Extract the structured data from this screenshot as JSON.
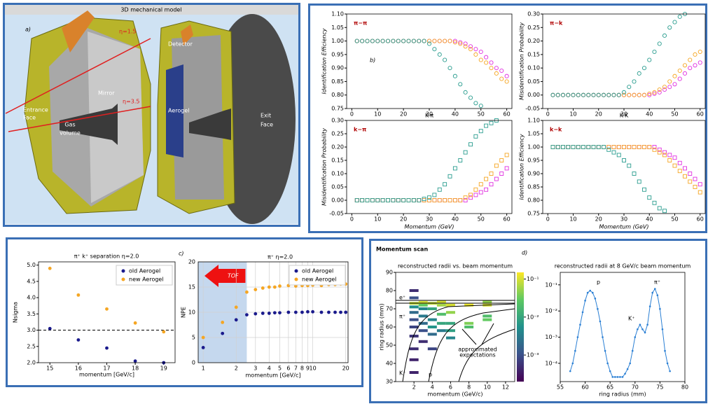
{
  "panel_a": {
    "title": "3D mechanical model",
    "label": "a)",
    "eta_lines": [
      "η=1.5",
      "η=3.5"
    ],
    "entrance_face": [
      "Entrance",
      "Face"
    ],
    "gas_volume": [
      "Gas",
      "volume"
    ],
    "mirror": "Mirror",
    "detector": "Detector",
    "aerogel": "Aerogel",
    "exit_face": [
      "Exit",
      "Face"
    ]
  },
  "panel_d": {
    "title": "Momentum scan",
    "label": "d)"
  },
  "chart_data": [
    {
      "type": "scatter",
      "marker": "circle",
      "title": "π−π",
      "xlabel": "K-π",
      "ylabel": "Identification Efficiency",
      "labels": [
        "b)"
      ],
      "x": [
        2,
        4,
        6,
        8,
        10,
        12,
        14,
        16,
        18,
        20,
        22,
        24,
        26,
        28,
        30,
        32,
        34,
        36,
        38,
        40,
        42,
        44,
        46,
        48,
        50,
        52,
        54,
        56,
        58,
        60
      ],
      "xlim": [
        -2,
        62
      ],
      "xticks": [
        0,
        10,
        20,
        30,
        40,
        50,
        60
      ],
      "ylim": [
        0.75,
        1.1
      ],
      "yticks": [
        0.75,
        {
          "value": 0.8,
          "label": "0.80"
        },
        0.85,
        {
          "value": 0.9,
          "label": "0.90"
        },
        0.95,
        {
          "value": 1,
          "label": "1.00"
        },
        1.05,
        {
          "value": 1.1,
          "label": "1.10"
        }
      ],
      "series": [
        {
          "color": "#e030e0",
          "values": [
            1,
            1,
            1,
            1,
            1,
            1,
            1,
            1,
            1,
            1,
            1,
            1,
            1,
            1,
            1,
            1,
            1,
            1,
            1,
            1,
            0.995,
            0.99,
            0.98,
            0.97,
            0.96,
            0.94,
            0.92,
            0.9,
            0.89,
            0.87
          ]
        },
        {
          "color": "#f5a623",
          "values": [
            1,
            1,
            1,
            1,
            1,
            1,
            1,
            1,
            1,
            1,
            1,
            1,
            1,
            1,
            1,
            1,
            1,
            1,
            1,
            0.995,
            0.99,
            0.98,
            0.97,
            0.95,
            0.93,
            0.92,
            0.9,
            0.88,
            0.86,
            0.85
          ]
        },
        {
          "color": "#2a9d8f",
          "values": [
            1,
            1,
            1,
            1,
            1,
            1,
            1,
            1,
            1,
            1,
            1,
            1,
            1,
            1,
            0.99,
            0.97,
            0.95,
            0.93,
            0.9,
            0.87,
            0.84,
            0.81,
            0.79,
            0.77,
            0.76,
            null,
            null,
            null,
            null,
            null
          ]
        }
      ]
    },
    {
      "type": "scatter",
      "marker": "circle",
      "title": "π−k",
      "xlabel": "K-K",
      "ylabel": "Misidentification Probability",
      "x": [
        2,
        4,
        6,
        8,
        10,
        12,
        14,
        16,
        18,
        20,
        22,
        24,
        26,
        28,
        30,
        32,
        34,
        36,
        38,
        40,
        42,
        44,
        46,
        48,
        50,
        52,
        54,
        56,
        58,
        60
      ],
      "xlim": [
        -2,
        62
      ],
      "xticks": [
        0,
        10,
        20,
        30,
        40,
        50,
        60
      ],
      "ylim": [
        -0.05,
        0.3
      ],
      "yticks": [
        -0.05,
        {
          "value": 0,
          "label": "0.00"
        },
        0.05,
        {
          "value": 0.1,
          "label": "0.10"
        },
        0.15,
        {
          "value": 0.2,
          "label": "0.20"
        },
        0.25,
        {
          "value": 0.3,
          "label": "0.30"
        }
      ],
      "series": [
        {
          "color": "#e030e0",
          "values": [
            0,
            0,
            0,
            0,
            0,
            0,
            0,
            0,
            0,
            0,
            0,
            0,
            0,
            0,
            0,
            0,
            0,
            0,
            0,
            0,
            0.005,
            0.01,
            0.02,
            0.03,
            0.04,
            0.06,
            0.08,
            0.1,
            0.11,
            0.12
          ]
        },
        {
          "color": "#f5a623",
          "values": [
            0,
            0,
            0,
            0,
            0,
            0,
            0,
            0,
            0,
            0,
            0,
            0,
            0,
            0,
            0,
            0,
            0,
            0,
            0,
            0.005,
            0.01,
            0.02,
            0.03,
            0.05,
            0.07,
            0.09,
            0.11,
            0.13,
            0.15,
            0.16
          ]
        },
        {
          "color": "#2a9d8f",
          "values": [
            0,
            0,
            0,
            0,
            0,
            0,
            0,
            0,
            0,
            0,
            0,
            0,
            0,
            0,
            0.01,
            0.03,
            0.05,
            0.08,
            0.1,
            0.13,
            0.16,
            0.19,
            0.22,
            0.25,
            0.27,
            0.29,
            0.3,
            null,
            null,
            null
          ]
        }
      ]
    },
    {
      "type": "scatter",
      "marker": "square",
      "title": "k−π",
      "xlabel": "Momentum (GeV)",
      "ylabel": "Misidentification Probability",
      "x": [
        2,
        4,
        6,
        8,
        10,
        12,
        14,
        16,
        18,
        20,
        22,
        24,
        26,
        28,
        30,
        32,
        34,
        36,
        38,
        40,
        42,
        44,
        46,
        48,
        50,
        52,
        54,
        56,
        58,
        60
      ],
      "xlim": [
        -2,
        62
      ],
      "xticks": [
        0,
        10,
        20,
        30,
        40,
        50,
        60
      ],
      "ylim": [
        -0.05,
        0.3
      ],
      "yticks": [
        -0.05,
        {
          "value": 0,
          "label": "0.00"
        },
        0.05,
        {
          "value": 0.1,
          "label": "0.10"
        },
        0.15,
        {
          "value": 0.2,
          "label": "0.20"
        },
        0.25,
        {
          "value": 0.3,
          "label": "0.30"
        }
      ],
      "series": [
        {
          "color": "#e030e0",
          "values": [
            0,
            0,
            0,
            0,
            0,
            0,
            0,
            0,
            0,
            0,
            0,
            0,
            0,
            0,
            0,
            0,
            0,
            0,
            0,
            0,
            0,
            0,
            0.01,
            0.02,
            0.03,
            0.04,
            0.06,
            0.08,
            0.1,
            0.12
          ]
        },
        {
          "color": "#f5a623",
          "values": [
            0,
            0,
            0,
            0,
            0,
            0,
            0,
            0,
            0,
            0,
            0,
            0,
            0,
            0,
            0,
            0,
            0,
            0,
            0,
            0,
            0,
            0.01,
            0.02,
            0.04,
            0.06,
            0.08,
            0.1,
            0.13,
            0.15,
            0.17
          ]
        },
        {
          "color": "#2a9d8f",
          "values": [
            0,
            0,
            0,
            0,
            0,
            0,
            0,
            0,
            0,
            0,
            0,
            0,
            0,
            0.005,
            0.01,
            0.02,
            0.04,
            0.06,
            0.09,
            0.12,
            0.15,
            0.18,
            0.21,
            0.24,
            0.26,
            0.28,
            0.29,
            0.3,
            null,
            null
          ]
        }
      ]
    },
    {
      "type": "scatter",
      "marker": "square",
      "title": "k−k",
      "xlabel": "Momentum (GeV)",
      "ylabel": "Identification Efficiency",
      "x": [
        2,
        4,
        6,
        8,
        10,
        12,
        14,
        16,
        18,
        20,
        22,
        24,
        26,
        28,
        30,
        32,
        34,
        36,
        38,
        40,
        42,
        44,
        46,
        48,
        50,
        52,
        54,
        56,
        58,
        60
      ],
      "xlim": [
        -2,
        62
      ],
      "xticks": [
        0,
        10,
        20,
        30,
        40,
        50,
        60
      ],
      "ylim": [
        0.75,
        1.1
      ],
      "yticks": [
        0.75,
        {
          "value": 0.8,
          "label": "0.80"
        },
        0.85,
        {
          "value": 0.9,
          "label": "0.90"
        },
        0.95,
        {
          "value": 1,
          "label": "1.00"
        },
        1.05,
        {
          "value": 1.1,
          "label": "1.10"
        }
      ],
      "series": [
        {
          "color": "#e030e0",
          "values": [
            1,
            1,
            1,
            1,
            1,
            1,
            1,
            1,
            1,
            1,
            1,
            1,
            1,
            1,
            1,
            1,
            1,
            1,
            1,
            1,
            1,
            0.99,
            0.98,
            0.97,
            0.96,
            0.94,
            0.92,
            0.9,
            0.88,
            0.86
          ]
        },
        {
          "color": "#f5a623",
          "values": [
            1,
            1,
            1,
            1,
            1,
            1,
            1,
            1,
            1,
            1,
            1,
            1,
            1,
            1,
            1,
            1,
            1,
            1,
            1,
            1,
            0.99,
            0.98,
            0.97,
            0.95,
            0.93,
            0.91,
            0.89,
            0.87,
            0.85,
            0.83
          ]
        },
        {
          "color": "#2a9d8f",
          "values": [
            1,
            1,
            1,
            1,
            1,
            1,
            1,
            1,
            1,
            1,
            1,
            0.99,
            0.98,
            0.97,
            0.95,
            0.93,
            0.9,
            0.87,
            0.84,
            0.81,
            0.79,
            0.77,
            0.76,
            null,
            null,
            null,
            null,
            null,
            null,
            null
          ]
        }
      ]
    },
    {
      "type": "scatter",
      "marker": "dot",
      "title": "π⁺ k⁺ separation   η=2.0",
      "xlabel": "momentum [GeV/c]",
      "ylabel": "Nsigma",
      "legend": "upper right",
      "x": [
        15,
        16,
        17,
        18,
        19
      ],
      "xlim": [
        14.6,
        19.4
      ],
      "xticks": [
        15,
        16,
        17,
        18,
        19
      ],
      "ylim": [
        2,
        5.1
      ],
      "yticks": [
        {
          "value": 2,
          "label": "2.0"
        },
        2.5,
        {
          "value": 3,
          "label": "3.0"
        },
        3.5,
        {
          "value": 4,
          "label": "4.0"
        },
        4.5,
        {
          "value": 5,
          "label": "5.0"
        }
      ],
      "hline": 3,
      "series": [
        {
          "name": "old Aerogel",
          "color": "#1a1a8c",
          "values": [
            3.05,
            2.7,
            2.45,
            2.05,
            2.0
          ]
        },
        {
          "name": "new Aerogel",
          "color": "#f5a623",
          "values": [
            4.9,
            4.08,
            3.65,
            3.22,
            2.95
          ]
        }
      ]
    },
    {
      "type": "scatter",
      "marker": "dot",
      "title": "π⁺   η=2.0",
      "xlabel": "momentum [GeV/c]",
      "ylabel": "NPE",
      "labels": [
        "c)",
        "TOF"
      ],
      "legend": "upper right",
      "xlog": true,
      "grid": true,
      "tof_limit": 2.5,
      "x": [
        1,
        1.5,
        2,
        2.5,
        3,
        3.5,
        4,
        4.5,
        5,
        6,
        7,
        8,
        9,
        10,
        12,
        14,
        16,
        18,
        20
      ],
      "xlim": [
        0.9,
        21
      ],
      "xticks": [
        1,
        2,
        3,
        4,
        5,
        6,
        7,
        8,
        9,
        10,
        20
      ],
      "ylim": [
        0,
        20
      ],
      "yticks": [
        0,
        5,
        10,
        15,
        20
      ],
      "series": [
        {
          "name": "old Aerogel",
          "color": "#1a1a8c",
          "values": [
            3,
            5.8,
            8.5,
            9.5,
            9.7,
            9.8,
            9.8,
            9.9,
            9.9,
            10,
            10,
            10,
            10.1,
            10.1,
            10,
            10,
            10,
            10,
            10
          ]
        },
        {
          "name": "new Aerogel",
          "color": "#f5a623",
          "values": [
            5,
            8,
            11,
            14,
            14.5,
            14.8,
            15,
            15,
            15.2,
            15.3,
            15.2,
            15.3,
            15.3,
            15.4,
            15.3,
            15.5,
            15.5,
            15.6,
            15.6
          ]
        }
      ]
    },
    {
      "type": "heatmap",
      "title": "reconstructed radii vs. beam momentum",
      "xlabel": "momentum (GeV/c)",
      "ylabel": "ring radius (mm)",
      "labels": [
        "e⁺",
        "π⁺",
        "K⁺",
        "p",
        "approximated",
        "expectations"
      ],
      "xlim": [
        0,
        13
      ],
      "xticks": [
        2,
        4,
        6,
        8,
        10,
        12
      ],
      "ylim": [
        30,
        90
      ],
      "yticks": [
        30,
        40,
        50,
        60,
        70,
        80,
        90
      ],
      "clim": [
        0.0002,
        0.15
      ],
      "colorbar_ticks": [
        {
          "value": 0.1,
          "label": "10⁻¹"
        },
        {
          "value": 0.01,
          "label": "10⁻²"
        },
        {
          "value": 0.001,
          "label": "10⁻³"
        }
      ],
      "cells": {
        "x": [
          2,
          2,
          2,
          2,
          2,
          2,
          2,
          2,
          2,
          2,
          2,
          3,
          3,
          3,
          3,
          3,
          3,
          3,
          4,
          4,
          4,
          4,
          4,
          4,
          5,
          5,
          5,
          5,
          5,
          6,
          6,
          6,
          6,
          6,
          8,
          8,
          8,
          10,
          10,
          10,
          10
        ],
        "y": [
          35,
          42,
          48,
          55,
          60,
          64,
          68,
          71,
          73,
          76,
          80,
          52,
          58,
          62,
          66,
          70,
          72,
          73.5,
          48,
          56,
          60,
          64,
          70,
          73,
          58,
          62,
          67,
          72,
          74,
          54,
          58,
          62,
          68,
          72,
          60,
          62,
          72,
          64,
          66,
          72,
          74
        ],
        "values": [
          0.0004,
          0.0004,
          0.0005,
          0.0006,
          0.0008,
          0.001,
          0.002,
          0.005,
          0.08,
          0.001,
          0.0005,
          0.0005,
          0.001,
          0.002,
          0.003,
          0.004,
          0.03,
          0.1,
          0.0008,
          0.002,
          0.006,
          0.004,
          0.01,
          0.08,
          0.003,
          0.01,
          0.02,
          0.06,
          0.1,
          0.004,
          0.008,
          0.01,
          0.05,
          0.1,
          0.02,
          0.04,
          0.12,
          0.03,
          0.02,
          0.1,
          0.05
        ]
      }
    },
    {
      "type": "line",
      "title": "reconstructed radii at 8 GeV/c beam momentum",
      "xlabel": "ring radius (mm)",
      "labels": [
        "p",
        "K⁺",
        "π⁺"
      ],
      "color": "#2a7fd4",
      "ylog": true,
      "x": [
        57,
        57.5,
        58,
        58.5,
        59,
        59.5,
        60,
        60.5,
        61,
        61.5,
        62,
        62.5,
        63,
        63.5,
        64,
        64.5,
        65,
        65.5,
        66,
        66.5,
        67,
        67.5,
        68,
        68.5,
        69,
        69.5,
        70,
        70.5,
        71,
        71.5,
        72,
        72.5,
        73,
        73.5,
        74,
        74.5,
        75,
        75.5,
        76,
        76.5,
        77
      ],
      "values": [
        5e-05,
        0.0001,
        0.0003,
        0.001,
        0.003,
        0.009,
        0.025,
        0.05,
        0.06,
        0.05,
        0.03,
        0.012,
        0.004,
        0.001,
        0.0003,
        0.0001,
        5e-05,
        3e-05,
        3e-05,
        3e-05,
        3e-05,
        3e-05,
        4e-05,
        6e-05,
        0.0001,
        0.0003,
        0.001,
        0.002,
        0.003,
        0.002,
        0.0015,
        0.003,
        0.015,
        0.05,
        0.07,
        0.04,
        0.012,
        0.002,
        0.0003,
        0.0001,
        5e-05
      ],
      "xlim": [
        55,
        80
      ],
      "xticks": [
        55,
        60,
        65,
        70,
        75,
        80
      ],
      "ylim": [
        2e-05,
        0.3
      ],
      "yticks": [
        {
          "value": 0.1,
          "label": "10⁻¹"
        },
        {
          "value": 0.01,
          "label": "10⁻²"
        },
        {
          "value": 0.001,
          "label": "10⁻³"
        },
        {
          "value": 0.0001,
          "label": "10⁻⁴"
        }
      ]
    }
  ]
}
